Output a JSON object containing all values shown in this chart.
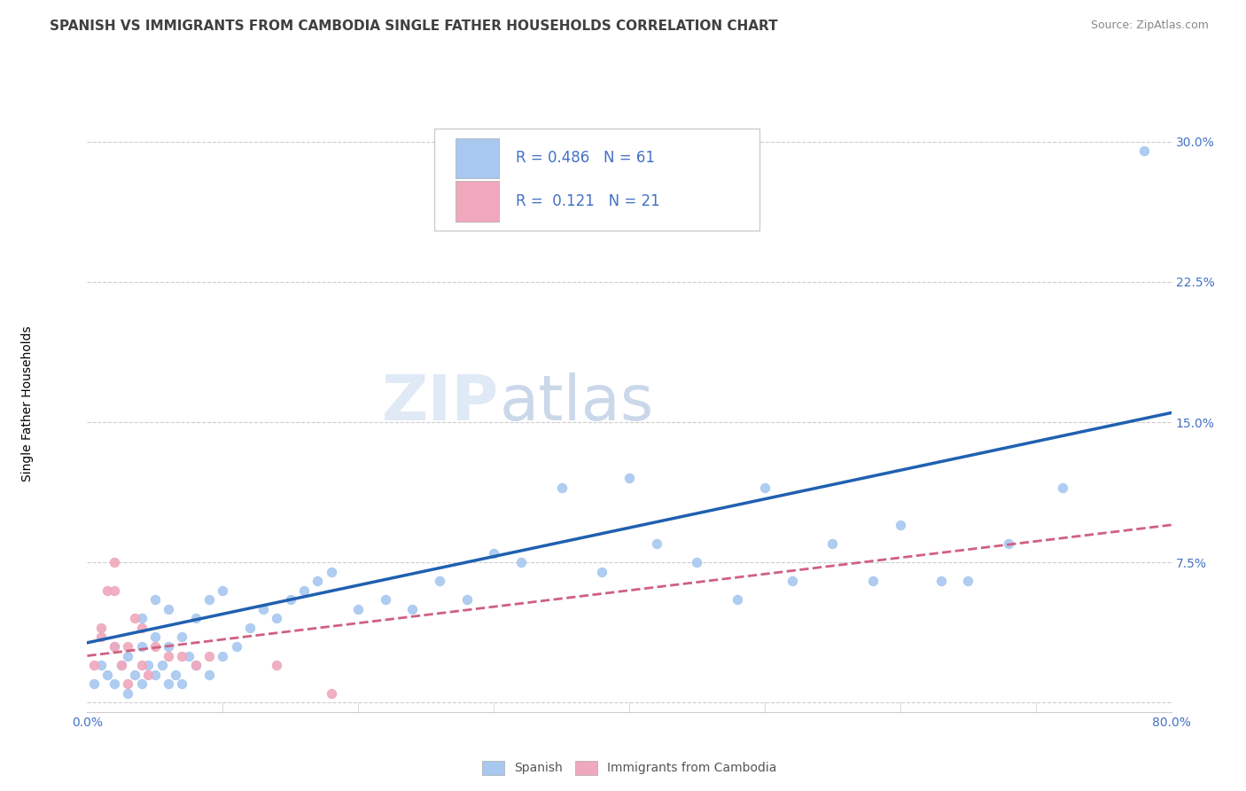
{
  "title": "SPANISH VS IMMIGRANTS FROM CAMBODIA SINGLE FATHER HOUSEHOLDS CORRELATION CHART",
  "source": "Source: ZipAtlas.com",
  "ylabel": "Single Father Households",
  "watermark_left": "ZIP",
  "watermark_right": "atlas",
  "xlim": [
    0.0,
    0.8
  ],
  "ylim": [
    -0.005,
    0.325
  ],
  "yticks": [
    0.0,
    0.075,
    0.15,
    0.225,
    0.3
  ],
  "ytick_labels": [
    "",
    "7.5%",
    "15.0%",
    "22.5%",
    "30.0%"
  ],
  "xtick_labels": [
    "0.0%",
    "80.0%"
  ],
  "xtick_pos": [
    0.0,
    0.8
  ],
  "blue_color": "#a8c8f0",
  "pink_color": "#f0a8bc",
  "line_blue": "#2060b0",
  "line_pink": "#d06080",
  "r_blue": "0.486",
  "n_blue": "61",
  "r_pink": "0.121",
  "n_pink": "21",
  "legend_label_blue": "Spanish",
  "legend_label_pink": "Immigrants from Cambodia",
  "blue_scatter_x": [
    0.005,
    0.01,
    0.015,
    0.02,
    0.02,
    0.025,
    0.03,
    0.03,
    0.035,
    0.04,
    0.04,
    0.04,
    0.045,
    0.05,
    0.05,
    0.05,
    0.055,
    0.06,
    0.06,
    0.06,
    0.065,
    0.07,
    0.07,
    0.075,
    0.08,
    0.08,
    0.09,
    0.09,
    0.1,
    0.1,
    0.11,
    0.12,
    0.13,
    0.14,
    0.15,
    0.16,
    0.17,
    0.18,
    0.2,
    0.22,
    0.24,
    0.26,
    0.28,
    0.3,
    0.32,
    0.35,
    0.38,
    0.4,
    0.42,
    0.45,
    0.48,
    0.5,
    0.52,
    0.55,
    0.58,
    0.6,
    0.63,
    0.65,
    0.68,
    0.72,
    0.78
  ],
  "blue_scatter_y": [
    0.01,
    0.02,
    0.015,
    0.01,
    0.03,
    0.02,
    0.005,
    0.025,
    0.015,
    0.01,
    0.03,
    0.045,
    0.02,
    0.015,
    0.035,
    0.055,
    0.02,
    0.01,
    0.03,
    0.05,
    0.015,
    0.01,
    0.035,
    0.025,
    0.02,
    0.045,
    0.015,
    0.055,
    0.025,
    0.06,
    0.03,
    0.04,
    0.05,
    0.045,
    0.055,
    0.06,
    0.065,
    0.07,
    0.05,
    0.055,
    0.05,
    0.065,
    0.055,
    0.08,
    0.075,
    0.115,
    0.07,
    0.12,
    0.085,
    0.075,
    0.055,
    0.115,
    0.065,
    0.085,
    0.065,
    0.095,
    0.065,
    0.065,
    0.085,
    0.115,
    0.295
  ],
  "pink_scatter_x": [
    0.005,
    0.01,
    0.01,
    0.015,
    0.02,
    0.02,
    0.02,
    0.025,
    0.03,
    0.03,
    0.035,
    0.04,
    0.04,
    0.045,
    0.05,
    0.06,
    0.07,
    0.08,
    0.09,
    0.14,
    0.18
  ],
  "pink_scatter_y": [
    0.02,
    0.04,
    0.035,
    0.06,
    0.03,
    0.06,
    0.075,
    0.02,
    0.01,
    0.03,
    0.045,
    0.02,
    0.04,
    0.015,
    0.03,
    0.025,
    0.025,
    0.02,
    0.025,
    0.02,
    0.005
  ],
  "blue_trend_x0": 0.0,
  "blue_trend_y0": 0.032,
  "blue_trend_x1": 0.8,
  "blue_trend_y1": 0.155,
  "pink_trend_x0": 0.0,
  "pink_trend_y0": 0.025,
  "pink_trend_x1": 0.8,
  "pink_trend_y1": 0.095,
  "title_fontsize": 11,
  "axis_label_fontsize": 10,
  "tick_fontsize": 10,
  "source_fontsize": 9,
  "grid_color": "#cccccc",
  "background_color": "#ffffff",
  "tick_label_color": "#4472c4"
}
